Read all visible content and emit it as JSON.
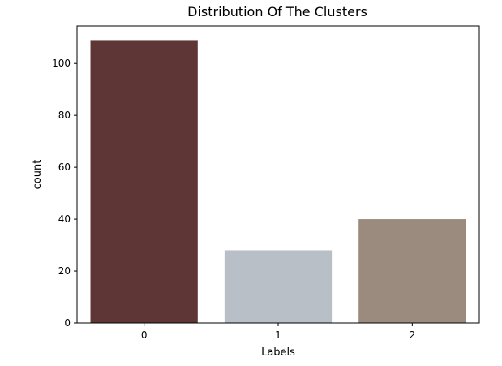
{
  "chart_data": {
    "type": "bar",
    "title": "Distribution Of The Clusters",
    "xlabel": "Labels",
    "ylabel": "count",
    "categories": [
      "0",
      "1",
      "2"
    ],
    "values": [
      109,
      28,
      40
    ],
    "colors": [
      "#5f3636",
      "#b9bfc6",
      "#9b8a7e"
    ],
    "ylim": [
      0,
      114.45
    ],
    "yticks": [
      0,
      20,
      40,
      60,
      80,
      100
    ],
    "grid": false,
    "legend": "none"
  }
}
